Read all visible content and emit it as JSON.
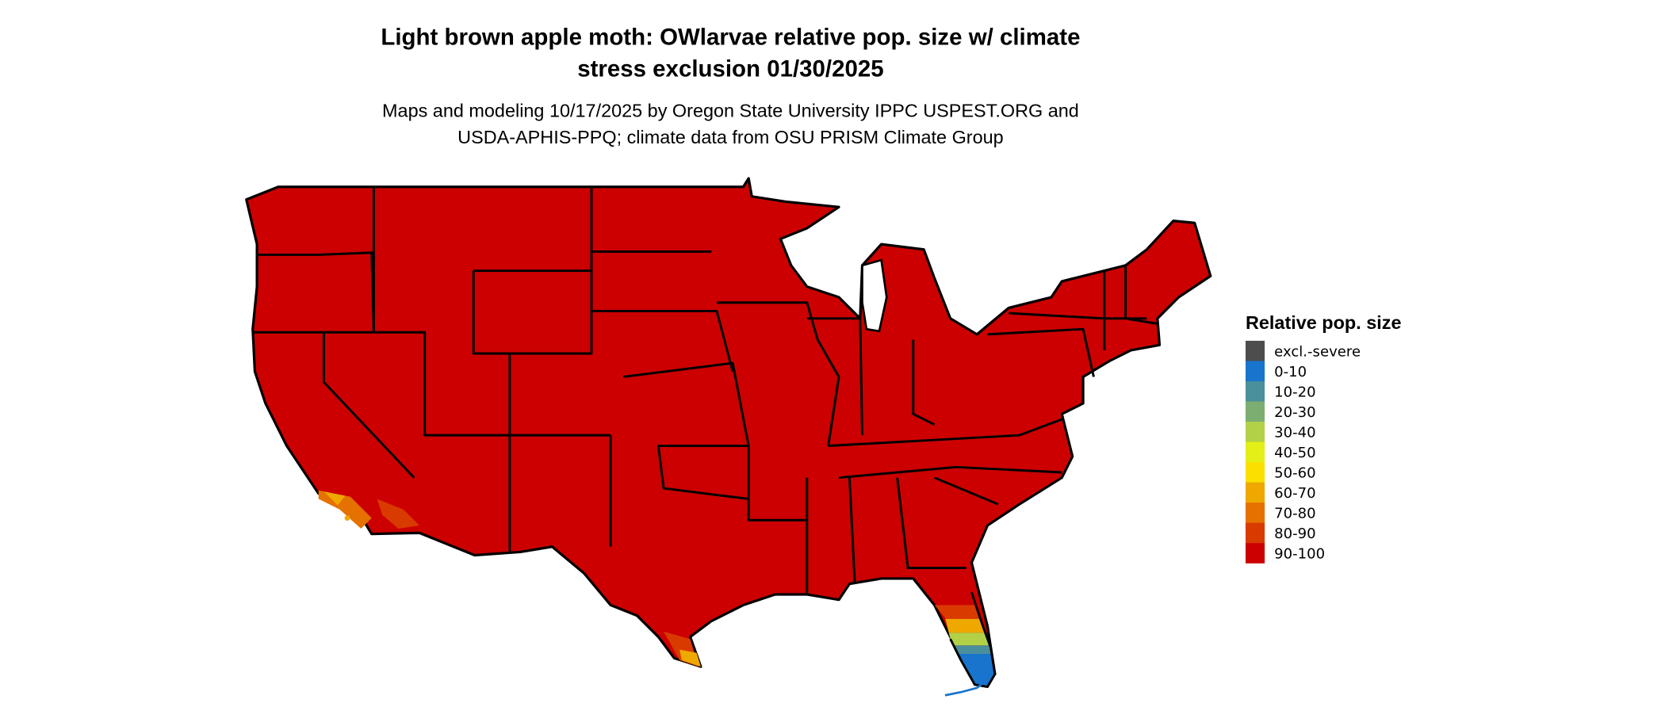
{
  "title_lines": [
    "Light brown apple moth: OWlarvae relative pop. size w/ climate",
    "stress exclusion 01/30/2025"
  ],
  "subtitle_lines": [
    "Maps and modeling 10/17/2025 by Oregon State University IPPC USPEST.ORG and",
    "USDA-APHIS-PPQ; climate data from OSU PRISM Climate Group"
  ],
  "legend": {
    "title": "Relative pop. size",
    "items": [
      {
        "label": "excl.-severe",
        "color": "#4d4d4d"
      },
      {
        "label": "0-10",
        "color": "#1874cd"
      },
      {
        "label": "10-20",
        "color": "#4a8f9c"
      },
      {
        "label": "20-30",
        "color": "#7cae72"
      },
      {
        "label": "30-40",
        "color": "#b2d147"
      },
      {
        "label": "40-50",
        "color": "#e3ef17"
      },
      {
        "label": "50-60",
        "color": "#f9e000"
      },
      {
        "label": "60-70",
        "color": "#eea800"
      },
      {
        "label": "70-80",
        "color": "#e57200"
      },
      {
        "label": "80-90",
        "color": "#d93a00"
      },
      {
        "label": "90-100",
        "color": "#cc0000"
      }
    ]
  },
  "map": {
    "region": "Contiguous United States",
    "dominant_class": "90-100"
  }
}
